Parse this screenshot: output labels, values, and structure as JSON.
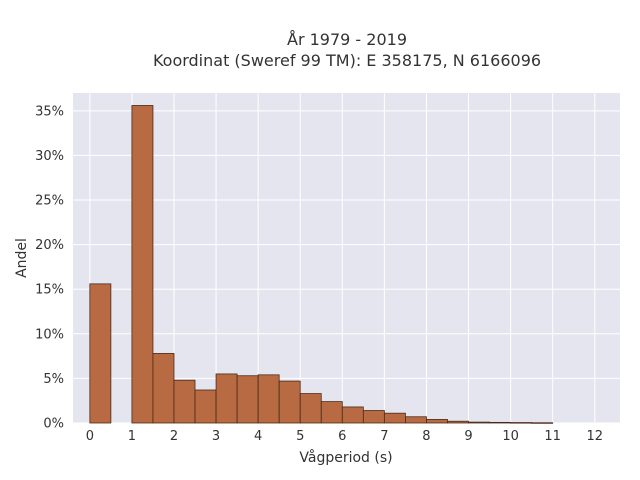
{
  "chart_data": {
    "type": "bar",
    "title_line1": "År 1979 - 2019",
    "title_line2": "Koordinat (Sweref 99 TM): E 358175, N 6166096",
    "xlabel": "Vågperiod (s)",
    "ylabel": "Andel",
    "xlim": [
      -0.4,
      12.6
    ],
    "ylim": [
      0,
      0.37
    ],
    "x_ticks": [
      0,
      1,
      2,
      3,
      4,
      5,
      6,
      7,
      8,
      9,
      10,
      11,
      12
    ],
    "y_ticks": [
      0,
      0.05,
      0.1,
      0.15,
      0.2,
      0.25,
      0.3,
      0.35
    ],
    "y_tick_labels": [
      "0%",
      "5%",
      "10%",
      "15%",
      "20%",
      "25%",
      "30%",
      "35%"
    ],
    "bin_width": 0.5,
    "bins": [
      {
        "start": 0.0,
        "end": 0.5,
        "value": 0.156
      },
      {
        "start": 1.0,
        "end": 1.5,
        "value": 0.356
      },
      {
        "start": 1.5,
        "end": 2.0,
        "value": 0.078
      },
      {
        "start": 2.0,
        "end": 2.5,
        "value": 0.048
      },
      {
        "start": 2.5,
        "end": 3.0,
        "value": 0.037
      },
      {
        "start": 3.0,
        "end": 3.5,
        "value": 0.055
      },
      {
        "start": 3.5,
        "end": 4.0,
        "value": 0.053
      },
      {
        "start": 4.0,
        "end": 4.5,
        "value": 0.054
      },
      {
        "start": 4.5,
        "end": 5.0,
        "value": 0.047
      },
      {
        "start": 5.0,
        "end": 5.5,
        "value": 0.033
      },
      {
        "start": 5.5,
        "end": 6.0,
        "value": 0.024
      },
      {
        "start": 6.0,
        "end": 6.5,
        "value": 0.018
      },
      {
        "start": 6.5,
        "end": 7.0,
        "value": 0.014
      },
      {
        "start": 7.0,
        "end": 7.5,
        "value": 0.011
      },
      {
        "start": 7.5,
        "end": 8.0,
        "value": 0.007
      },
      {
        "start": 8.0,
        "end": 8.5,
        "value": 0.004
      },
      {
        "start": 8.5,
        "end": 9.0,
        "value": 0.002
      },
      {
        "start": 9.0,
        "end": 9.5,
        "value": 0.001
      },
      {
        "start": 9.5,
        "end": 10.0,
        "value": 0.0007
      },
      {
        "start": 10.0,
        "end": 10.5,
        "value": 0.0005
      },
      {
        "start": 10.5,
        "end": 11.0,
        "value": 0.0003
      }
    ],
    "grid": true,
    "legend": false,
    "colors": {
      "bar_fill": "#b86b42",
      "bar_stroke": "#4a2a18",
      "plot_bg": "#e5e5ef",
      "grid": "#ffffff"
    }
  }
}
